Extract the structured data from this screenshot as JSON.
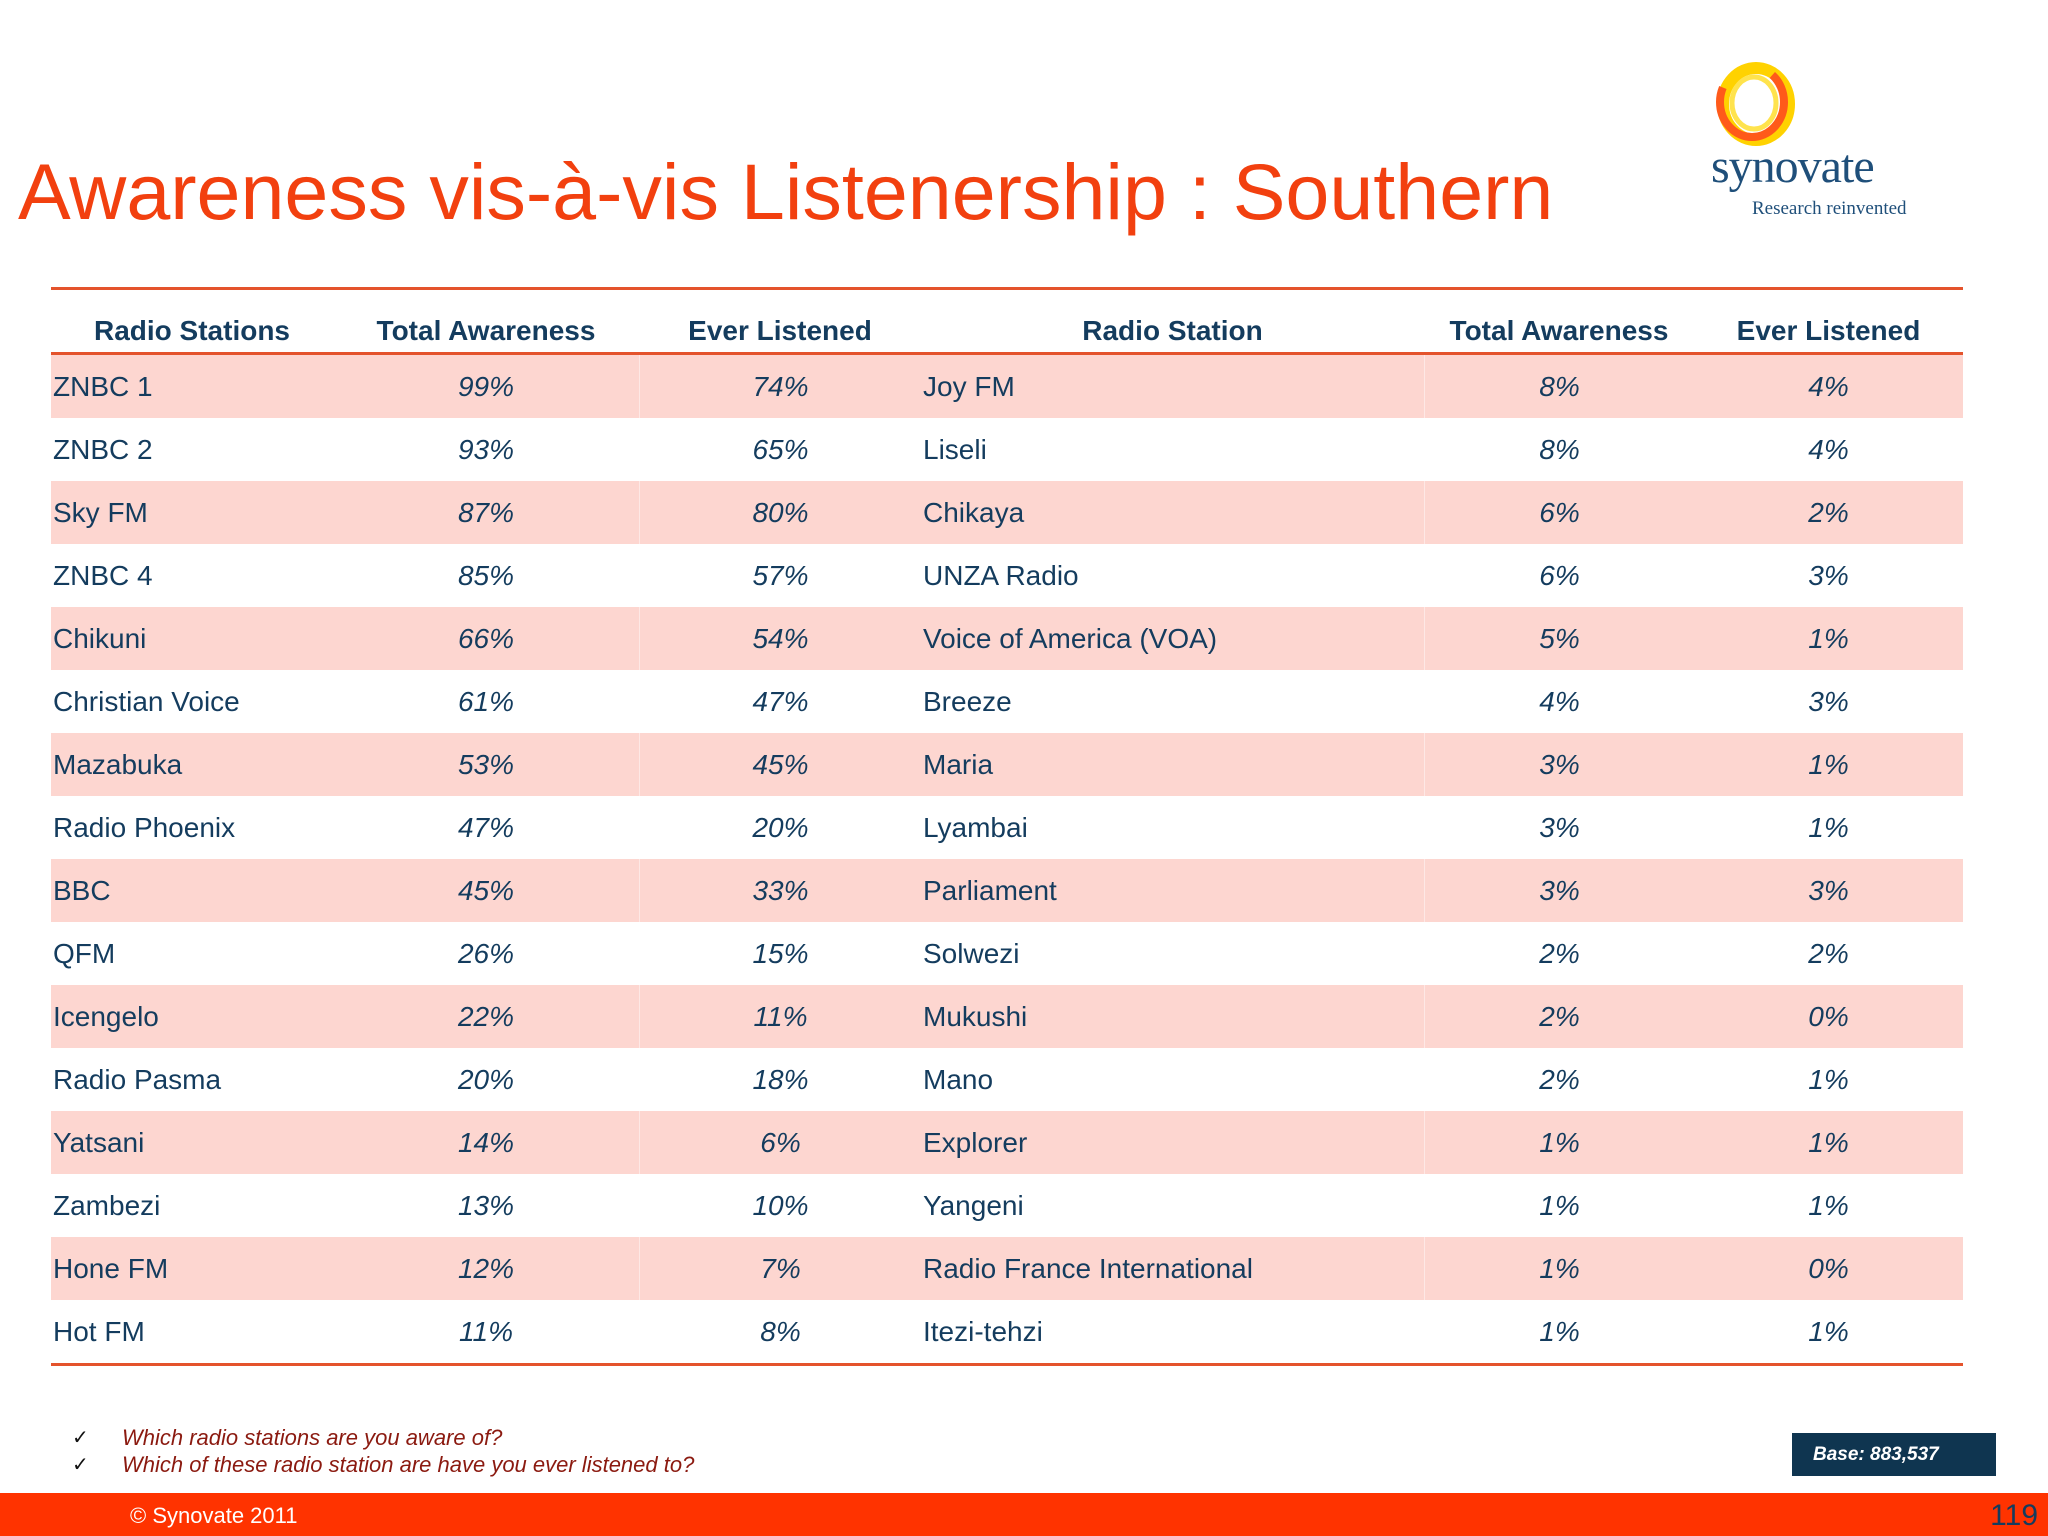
{
  "title": "Awareness vis-à-vis Listenership : Southern",
  "logo": {
    "name": "synovate",
    "tagline": "Research reinvented"
  },
  "table": {
    "headers": [
      "Radio Stations",
      "Total Awareness",
      "Ever Listened",
      "Radio Station",
      "Total Awareness",
      "Ever Listened"
    ],
    "rows": [
      [
        "ZNBC 1",
        "99%",
        "74%",
        "Joy FM",
        "8%",
        "4%"
      ],
      [
        "ZNBC 2",
        "93%",
        "65%",
        "Liseli",
        "8%",
        "4%"
      ],
      [
        "Sky FM",
        "87%",
        "80%",
        "Chikaya",
        "6%",
        "2%"
      ],
      [
        "ZNBC 4",
        "85%",
        "57%",
        "UNZA Radio",
        "6%",
        "3%"
      ],
      [
        "Chikuni",
        "66%",
        "54%",
        "Voice of America (VOA)",
        "5%",
        "1%"
      ],
      [
        "Christian Voice",
        "61%",
        "47%",
        "Breeze",
        "4%",
        "3%"
      ],
      [
        "Mazabuka",
        "53%",
        "45%",
        "Maria",
        "3%",
        "1%"
      ],
      [
        "Radio Phoenix",
        "47%",
        "20%",
        "Lyambai",
        "3%",
        "1%"
      ],
      [
        "BBC",
        "45%",
        "33%",
        "Parliament",
        "3%",
        "3%"
      ],
      [
        "QFM",
        "26%",
        "15%",
        "Solwezi",
        "2%",
        "2%"
      ],
      [
        "Icengelo",
        "22%",
        "11%",
        "Mukushi",
        "2%",
        "0%"
      ],
      [
        "Radio Pasma",
        "20%",
        "18%",
        "Mano",
        "2%",
        "1%"
      ],
      [
        "Yatsani",
        "14%",
        "6%",
        "Explorer",
        "1%",
        "1%"
      ],
      [
        "Zambezi",
        "13%",
        "10%",
        "Yangeni",
        "1%",
        "1%"
      ],
      [
        "Hone FM",
        "12%",
        "7%",
        "Radio France International",
        "1%",
        "0%"
      ],
      [
        "Hot FM",
        "11%",
        "8%",
        "Itezi-tehzi",
        "1%",
        "1%"
      ]
    ]
  },
  "notes": [
    {
      "icon": "check-icon",
      "text": "Which radio stations are you aware of?"
    },
    {
      "icon": "check-icon",
      "text": "Which of these radio station are have you ever listened to?"
    }
  ],
  "base": "Base: 883,537",
  "footer": {
    "copyright": "© Synovate 2011",
    "page_number": "119"
  },
  "colors": {
    "title": "#f2400f",
    "accent_rule": "#e4532c",
    "row_shade": "#fdd6d0",
    "text": "#143c5e",
    "footer": "#ff3300",
    "base_box": "#0f3550"
  }
}
